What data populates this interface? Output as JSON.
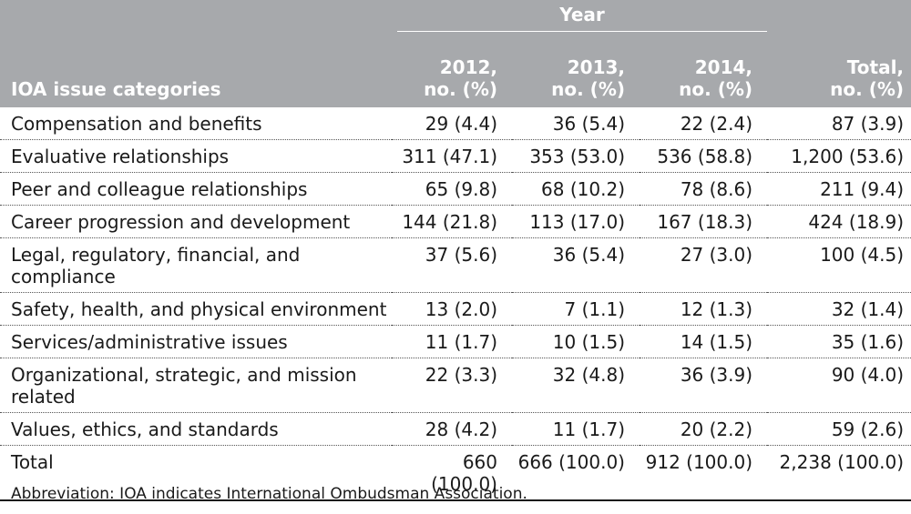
{
  "header": {
    "year_label": "Year",
    "category_label": "IOA issue categories",
    "columns": [
      {
        "line1": "2012,",
        "line2": "no. (%)"
      },
      {
        "line1": "2013,",
        "line2": "no. (%)"
      },
      {
        "line1": "2014,",
        "line2": "no. (%)"
      },
      {
        "line1": "Total,",
        "line2": "no. (%)"
      }
    ]
  },
  "rows": [
    {
      "category": "Compensation and benefits",
      "v2012": "29 (4.4)",
      "v2013": "36 (5.4)",
      "v2014": "22 (2.4)",
      "total": "87 (3.9)"
    },
    {
      "category": "Evaluative relationships",
      "v2012": "311 (47.1)",
      "v2013": "353 (53.0)",
      "v2014": "536 (58.8)",
      "total": "1,200 (53.6)"
    },
    {
      "category": "Peer and colleague relationships",
      "v2012": "65 (9.8)",
      "v2013": "68 (10.2)",
      "v2014": "78 (8.6)",
      "total": "211 (9.4)"
    },
    {
      "category": "Career progression and development",
      "v2012": "144 (21.8)",
      "v2013": "113 (17.0)",
      "v2014": "167 (18.3)",
      "total": "424 (18.9)"
    },
    {
      "category": "Legal, regulatory, financial, and compliance",
      "v2012": "37 (5.6)",
      "v2013": "36 (5.4)",
      "v2014": "27 (3.0)",
      "total": "100 (4.5)"
    },
    {
      "category": "Safety, health, and physical environment",
      "v2012": "13 (2.0)",
      "v2013": "7 (1.1)",
      "v2014": "12 (1.3)",
      "total": "32 (1.4)"
    },
    {
      "category": "Services/administrative issues",
      "v2012": "11 (1.7)",
      "v2013": "10 (1.5)",
      "v2014": "14 (1.5)",
      "total": "35 (1.6)"
    },
    {
      "category": "Organizational, strategic, and mission related",
      "v2012": "22 (3.3)",
      "v2013": "32 (4.8)",
      "v2014": "36 (3.9)",
      "total": "90 (4.0)"
    },
    {
      "category": "Values, ethics, and standards",
      "v2012": "28 (4.2)",
      "v2013": "11 (1.7)",
      "v2014": "20 (2.2)",
      "total": "59 (2.6)"
    }
  ],
  "total_row": {
    "category": "Total",
    "v2012": "660 (100.0)",
    "v2013": "666 (100.0)",
    "v2014": "912 (100.0)",
    "total": "2,238 (100.0)"
  },
  "footnote": "Abbreviation: IOA indicates International Ombudsman Association."
}
